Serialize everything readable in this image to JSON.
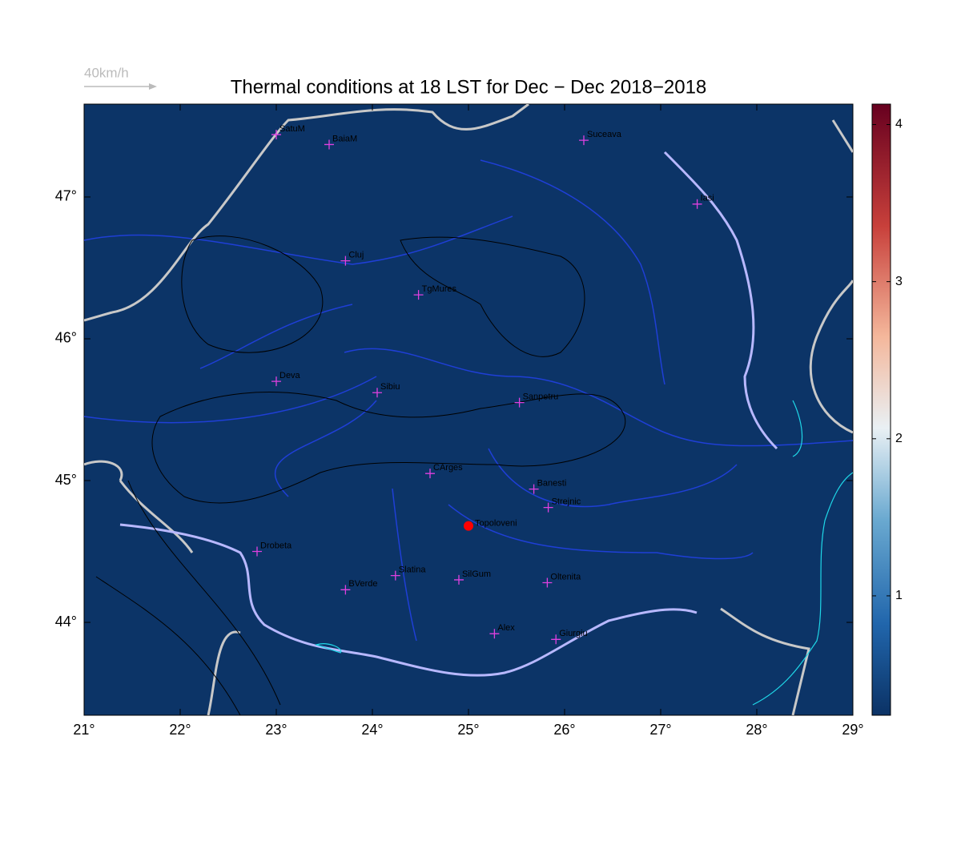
{
  "map": {
    "title": "Thermal conditions at 18 LST for Dec − Dec  2018−2018",
    "scale_label": "40km/h",
    "xlim": [
      21,
      29
    ],
    "ylim": [
      43.345,
      47.655
    ],
    "xticks": [
      {
        "value": 21,
        "label": "21°"
      },
      {
        "value": 22,
        "label": "22°"
      },
      {
        "value": 23,
        "label": "23°"
      },
      {
        "value": 24,
        "label": "24°"
      },
      {
        "value": 25,
        "label": "25°"
      },
      {
        "value": 26,
        "label": "26°"
      },
      {
        "value": 27,
        "label": "27°"
      },
      {
        "value": 28,
        "label": "28°"
      },
      {
        "value": 29,
        "label": "29°"
      }
    ],
    "yticks": [
      {
        "value": 44,
        "label": "44°"
      },
      {
        "value": 45,
        "label": "45°"
      },
      {
        "value": 46,
        "label": "46°"
      },
      {
        "value": 47,
        "label": "47°"
      }
    ],
    "colorbar": {
      "lim": [
        0.24,
        4.13
      ],
      "ticks": [
        1,
        2,
        3,
        4
      ]
    },
    "cities": [
      {
        "name": "SatuM",
        "lon": 23.0,
        "lat": 47.44
      },
      {
        "name": "BaiaM",
        "lon": 23.55,
        "lat": 47.37
      },
      {
        "name": "Suceava",
        "lon": 26.2,
        "lat": 47.4
      },
      {
        "name": "Iasi",
        "lon": 27.38,
        "lat": 46.95
      },
      {
        "name": "Cluj",
        "lon": 23.72,
        "lat": 46.55
      },
      {
        "name": "TgMures",
        "lon": 24.48,
        "lat": 46.31
      },
      {
        "name": "Deva",
        "lon": 23.0,
        "lat": 45.7
      },
      {
        "name": "Sibiu",
        "lon": 24.05,
        "lat": 45.62
      },
      {
        "name": "Sanpetru",
        "lon": 25.53,
        "lat": 45.55
      },
      {
        "name": "CArges",
        "lon": 24.6,
        "lat": 45.05
      },
      {
        "name": "Banesti",
        "lon": 25.68,
        "lat": 44.94
      },
      {
        "name": "Strejnic",
        "lon": 25.83,
        "lat": 44.81
      },
      {
        "name": "Drobeta",
        "lon": 22.8,
        "lat": 44.5
      },
      {
        "name": "Slatina",
        "lon": 24.24,
        "lat": 44.33
      },
      {
        "name": "SilGum",
        "lon": 24.9,
        "lat": 44.3
      },
      {
        "name": "Oltenita",
        "lon": 25.82,
        "lat": 44.28
      },
      {
        "name": "BVerde",
        "lon": 23.72,
        "lat": 44.23
      },
      {
        "name": "Alex",
        "lon": 25.27,
        "lat": 43.92
      },
      {
        "name": "Giurgiu",
        "lon": 25.91,
        "lat": 43.88
      }
    ],
    "marker": {
      "name": "Topoloveni",
      "lon": 25.0,
      "lat": 44.68
    }
  }
}
